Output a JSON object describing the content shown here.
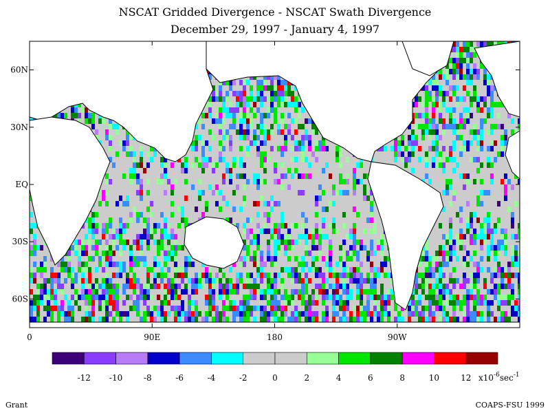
{
  "chart_data": {
    "type": "heatmap",
    "title": "NSCAT Gridded Divergence - NSCAT Swath Divergence",
    "subtitle": "December 29, 1997 - January 4, 1997",
    "xlabel": "",
    "ylabel": "",
    "x_ticks": [
      "0",
      "90E",
      "180",
      "90W"
    ],
    "x_tick_values": [
      0,
      90,
      180,
      270
    ],
    "y_ticks": [
      "60N",
      "30N",
      "EQ",
      "30S",
      "60S"
    ],
    "y_tick_values": [
      60,
      30,
      0,
      -30,
      -60
    ],
    "xlim": [
      0,
      360
    ],
    "ylim": [
      -75,
      75
    ],
    "colorbar": {
      "ticks": [
        "-12",
        "-10",
        "-8",
        "-6",
        "-4",
        "-2",
        "0",
        "2",
        "4",
        "6",
        "8",
        "10",
        "12"
      ],
      "units": "x10",
      "units_exp": "-6",
      "units_tail": "sec",
      "units_tail_exp": "-1",
      "colors": [
        "#3c0078",
        "#8a3cff",
        "#b87cf7",
        "#0000c8",
        "#3c8cff",
        "#00ffff",
        "#cccccc",
        "#cccccc",
        "#96ff96",
        "#00e600",
        "#008200",
        "#ff00ff",
        "#ff0000",
        "#960000"
      ]
    }
  },
  "credits": {
    "left": "Grant",
    "right": "COAPS-FSU 1999"
  }
}
